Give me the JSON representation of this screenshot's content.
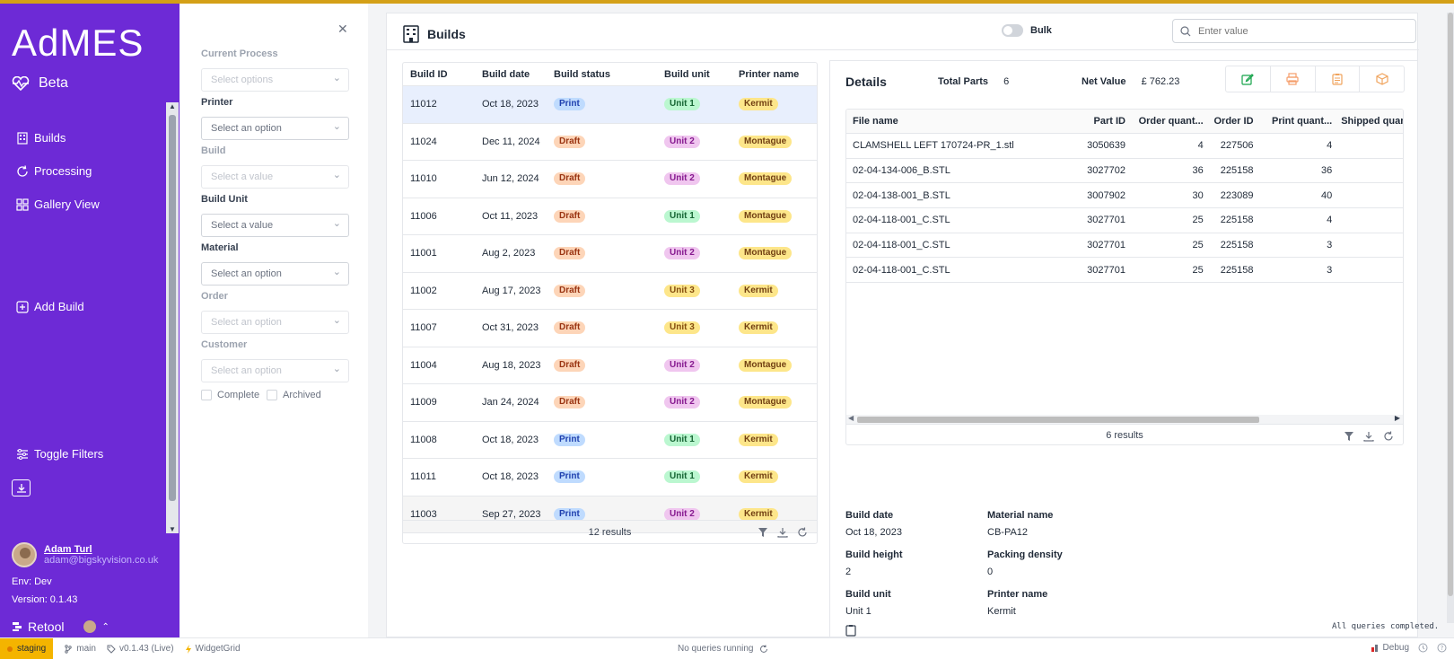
{
  "app": {
    "logo": "AdMES",
    "beta": "Beta",
    "accent": "#6d2ad6"
  },
  "nav": {
    "builds": "Builds",
    "processing": "Processing",
    "gallery": "Gallery View",
    "add_build": "Add Build",
    "toggle_filters": "Toggle Filters"
  },
  "user": {
    "name": "Adam Turl",
    "email": "adam@bigskyvision.co.uk",
    "env": "Env: Dev",
    "version": "Version: 0.1.43"
  },
  "retool": "Retool",
  "filters": {
    "current_process": {
      "label": "Current Process",
      "placeholder": "Select options"
    },
    "printer": {
      "label": "Printer",
      "placeholder": "Select an option"
    },
    "build": {
      "label": "Build",
      "placeholder": "Select a value"
    },
    "build_unit": {
      "label": "Build Unit",
      "placeholder": "Select a value"
    },
    "material": {
      "label": "Material",
      "placeholder": "Select an option"
    },
    "order": {
      "label": "Order",
      "placeholder": "Select an option"
    },
    "customer": {
      "label": "Customer",
      "placeholder": "Select an option"
    },
    "complete": "Complete",
    "archived": "Archived"
  },
  "main": {
    "title": "Builds",
    "bulk": "Bulk",
    "search_placeholder": "Enter value"
  },
  "builds_table": {
    "columns": [
      "Build ID",
      "Build date",
      "Build status",
      "Build unit",
      "Printer name"
    ],
    "rows": [
      {
        "id": "11012",
        "date": "Oct 18, 2023",
        "status": "Print",
        "unit": "Unit 1",
        "printer": "Kermit"
      },
      {
        "id": "11024",
        "date": "Dec 11, 2024",
        "status": "Draft",
        "unit": "Unit 2",
        "printer": "Montague"
      },
      {
        "id": "11010",
        "date": "Jun 12, 2024",
        "status": "Draft",
        "unit": "Unit 2",
        "printer": "Montague"
      },
      {
        "id": "11006",
        "date": "Oct 11, 2023",
        "status": "Draft",
        "unit": "Unit 1",
        "printer": "Montague"
      },
      {
        "id": "11001",
        "date": "Aug 2, 2023",
        "status": "Draft",
        "unit": "Unit 2",
        "printer": "Montague"
      },
      {
        "id": "11002",
        "date": "Aug 17, 2023",
        "status": "Draft",
        "unit": "Unit 3",
        "printer": "Kermit"
      },
      {
        "id": "11007",
        "date": "Oct 31, 2023",
        "status": "Draft",
        "unit": "Unit 3",
        "printer": "Kermit"
      },
      {
        "id": "11004",
        "date": "Aug 18, 2023",
        "status": "Draft",
        "unit": "Unit 2",
        "printer": "Montague"
      },
      {
        "id": "11009",
        "date": "Jan 24, 2024",
        "status": "Draft",
        "unit": "Unit 2",
        "printer": "Montague"
      },
      {
        "id": "11008",
        "date": "Oct 18, 2023",
        "status": "Print",
        "unit": "Unit 1",
        "printer": "Kermit"
      },
      {
        "id": "11011",
        "date": "Oct 18, 2023",
        "status": "Print",
        "unit": "Unit 1",
        "printer": "Kermit"
      },
      {
        "id": "11003",
        "date": "Sep 27, 2023",
        "status": "Print",
        "unit": "Unit 2",
        "printer": "Kermit"
      }
    ],
    "results": "12 results"
  },
  "details": {
    "title": "Details",
    "total_parts_label": "Total Parts",
    "total_parts": "6",
    "net_value_label": "Net Value",
    "net_value": "£ 762.23",
    "parts_table": {
      "columns": [
        "File name",
        "Part ID",
        "Order quant...",
        "Order ID",
        "Print quant...",
        "Shipped quan"
      ],
      "rows": [
        {
          "file": "CLAMSHELL LEFT 170724-PR_1.stl",
          "part": "3050639",
          "oq": "4",
          "order": "227506",
          "pq": "4",
          "sq": ""
        },
        {
          "file": "02-04-134-006_B.STL",
          "part": "3027702",
          "oq": "36",
          "order": "225158",
          "pq": "36",
          "sq": ""
        },
        {
          "file": "02-04-138-001_B.STL",
          "part": "3007902",
          "oq": "30",
          "order": "223089",
          "pq": "40",
          "sq": ""
        },
        {
          "file": "02-04-118-001_C.STL",
          "part": "3027701",
          "oq": "25",
          "order": "225158",
          "pq": "4",
          "sq": ""
        },
        {
          "file": "02-04-118-001_C.STL",
          "part": "3027701",
          "oq": "25",
          "order": "225158",
          "pq": "3",
          "sq": ""
        },
        {
          "file": "02-04-118-001_C.STL",
          "part": "3027701",
          "oq": "25",
          "order": "225158",
          "pq": "3",
          "sq": ""
        }
      ],
      "results": "6 results"
    },
    "build_date_label": "Build date",
    "build_date": "Oct 18, 2023",
    "material_label": "Material name",
    "material": "CB-PA12",
    "build_height_label": "Build height",
    "build_height": "2",
    "packing_label": "Packing density",
    "packing": "0",
    "build_unit_label": "Build unit",
    "build_unit": "Unit 1",
    "printer_label": "Printer name",
    "printer": "Kermit"
  },
  "queries_done": "All queries completed.",
  "statusbar": {
    "env": "staging",
    "branch": "main",
    "version": "v0.1.43 (Live)",
    "widget": "WidgetGrid",
    "queries": "No queries running",
    "debug": "Debug"
  }
}
